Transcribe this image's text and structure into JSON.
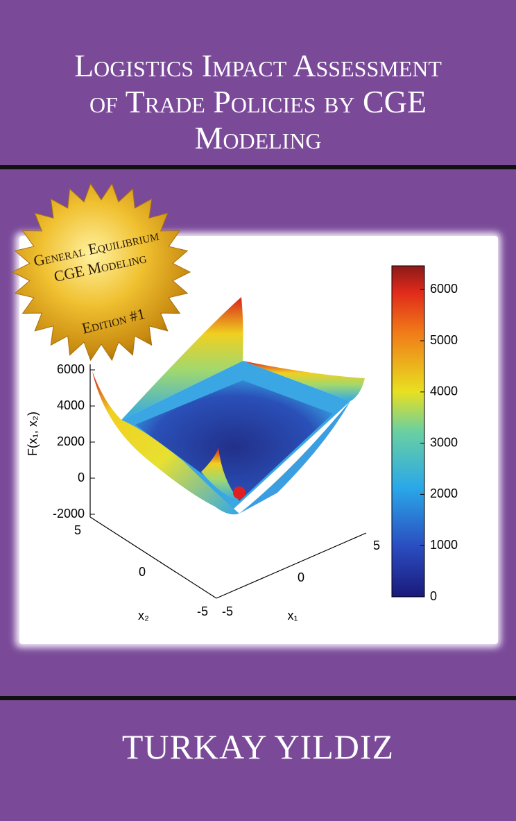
{
  "cover": {
    "title_lines": [
      "Logistics Impact Assessment",
      "of Trade Policies by CGE",
      "Modeling"
    ],
    "badge": {
      "lines": [
        "General Equilibrium",
        "CGE Modeling"
      ],
      "edition": "Edition #1"
    },
    "figure": {
      "z_label": "F(x₁, x₂)",
      "z_ticks": [
        "6000",
        "4000",
        "2000",
        "0",
        "-2000"
      ],
      "x2_label": "x₂",
      "x2_ticks": [
        "5",
        "0",
        "-5"
      ],
      "x1_label": "x₁",
      "x1_ticks": [
        "-5",
        "0",
        "5"
      ],
      "colorbar_ticks": [
        "0",
        "1000",
        "2000",
        "3000",
        "4000",
        "5000",
        "6000"
      ]
    },
    "author": "TURKAY YILDIZ"
  }
}
